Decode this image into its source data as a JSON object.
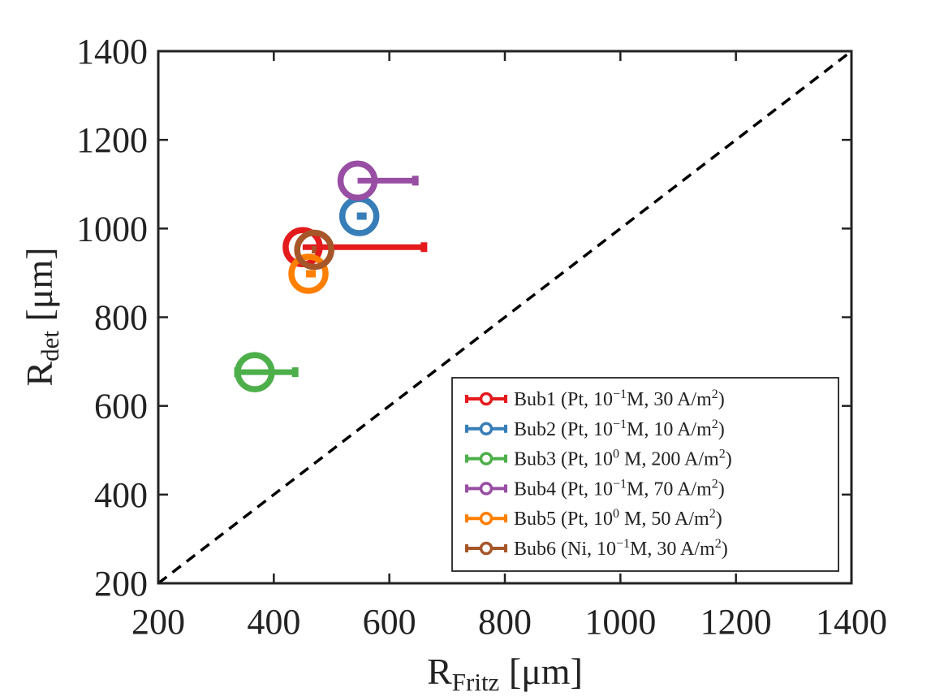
{
  "chart_data": {
    "type": "scatter",
    "title": "",
    "xlabel": {
      "main": "R",
      "sub": "Fritz",
      "unit": "[μm]"
    },
    "ylabel": {
      "main": "R",
      "sub": "det",
      "unit": "[μm]"
    },
    "xlim": [
      200,
      1400
    ],
    "ylim": [
      200,
      1400
    ],
    "xticks": [
      "200",
      "400",
      "600",
      "800",
      "1000",
      "1200",
      "1400"
    ],
    "yticks": [
      "200",
      "400",
      "600",
      "800",
      "1000",
      "1200",
      "1400"
    ],
    "grid": false,
    "legend_position": "bottom-right",
    "reference_line": {
      "style": "dashed",
      "color": "#000000",
      "points": [
        [
          200,
          200
        ],
        [
          1400,
          1400
        ]
      ]
    },
    "series": [
      {
        "name": "Bub1",
        "legend": {
          "a": "Bub1 (Pt, 10",
          "exp": "−1",
          "b": "M,   30 A/m",
          "sq": "2",
          "c": ")"
        },
        "color": "#e41a1c",
        "x": 450,
        "y": 958,
        "xerr_low": 0,
        "xerr_high": 210
      },
      {
        "name": "Bub2",
        "legend": {
          "a": "Bub2 (Pt, 10",
          "exp": "−1",
          "b": "M,   10 A/m",
          "sq": "2",
          "c": ")"
        },
        "color": "#377eb8",
        "x": 548,
        "y": 1028,
        "xerr_low": 0,
        "xerr_high": 0
      },
      {
        "name": "Bub3",
        "legend": {
          "a": "Bub3 (Pt, 10",
          "exp": "0",
          "b": " M, 200 A/m",
          "sq": "2",
          "c": ")"
        },
        "color": "#4daf4a",
        "x": 367,
        "y": 676,
        "xerr_low": 30,
        "xerr_high": 70
      },
      {
        "name": "Bub4",
        "legend": {
          "a": "Bub4 (Pt, 10",
          "exp": "−1",
          "b": "M,   70 A/m",
          "sq": "2",
          "c": ")"
        },
        "color": "#984ea3",
        "x": 545,
        "y": 1108,
        "xerr_low": 0,
        "xerr_high": 100
      },
      {
        "name": "Bub5",
        "legend": {
          "a": "Bub5 (Pt, 10",
          "exp": "0",
          "b": " M,   50 A/m",
          "sq": "2",
          "c": ")"
        },
        "color": "#ff7f00",
        "x": 460,
        "y": 898,
        "xerr_low": 0,
        "xerr_high": 0
      },
      {
        "name": "Bub6",
        "legend": {
          "a": "Bub6 (Ni, 10",
          "exp": "−1",
          "b": "M,   30 A/m",
          "sq": "2",
          "c": ")"
        },
        "color": "#a65628",
        "x": 470,
        "y": 952,
        "xerr_low": 0,
        "xerr_high": 0
      }
    ]
  }
}
